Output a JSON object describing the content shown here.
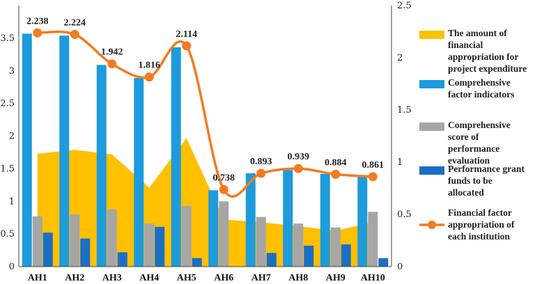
{
  "chart_data": {
    "type": "bar",
    "title": "",
    "categories": [
      "AH1",
      "AH2",
      "AH3",
      "AH4",
      "AH5",
      "AH6",
      "AH7",
      "AH8",
      "AH9",
      "AH10"
    ],
    "y_left": {
      "min": 0,
      "max": 4,
      "ticks": [
        "0",
        "0.5",
        "1",
        "1.5",
        "2",
        "2.5",
        "3",
        "3.5"
      ]
    },
    "y_right": {
      "min": 0,
      "max": 2.5,
      "ticks": [
        "0",
        "0.5",
        "1",
        "1.5",
        "2",
        "2.5"
      ]
    },
    "series": [
      {
        "name": "The amount of financial appropriation for project expenditure",
        "kind": "area",
        "axis": "left",
        "color": "#FFC000",
        "values": [
          1.73,
          1.79,
          1.72,
          1.21,
          1.97,
          0.72,
          0.68,
          0.62,
          0.55,
          0.68
        ]
      },
      {
        "name": "Comprehensive factor indicators",
        "kind": "bar",
        "axis": "left",
        "color": "#1E9BDB",
        "values": [
          3.57,
          3.54,
          3.09,
          2.89,
          3.36,
          1.17,
          1.43,
          1.48,
          1.42,
          1.38
        ]
      },
      {
        "name": "Comprehensive score of performance evaluation",
        "kind": "bar",
        "axis": "left",
        "color": "#A6A6A6",
        "values": [
          0.77,
          0.8,
          0.88,
          0.66,
          0.93,
          1.0,
          0.76,
          0.66,
          0.6,
          0.84
        ]
      },
      {
        "name": "Performance grant funds to be allocated",
        "kind": "bar",
        "axis": "left",
        "color": "#1A6FC5",
        "values": [
          0.52,
          0.43,
          0.22,
          0.61,
          0.13,
          0.0,
          0.21,
          0.32,
          0.34,
          0.13
        ]
      },
      {
        "name": "Financial factor appropriation of each institution",
        "kind": "line",
        "axis": "right",
        "color": "#F47B20",
        "values": [
          2.238,
          2.224,
          1.942,
          1.816,
          2.114,
          0.738,
          0.893,
          0.939,
          0.884,
          0.861
        ],
        "labels": [
          "2.238",
          "2.224",
          "1.942",
          "1.816",
          "2.114",
          "0.738",
          "0.893",
          "0.939",
          "0.884",
          "0.861"
        ]
      }
    ],
    "legend": {
      "position": "right",
      "entries": [
        {
          "lines": [
            "The amount of",
            "financial",
            "appropriation for",
            "project expenditure"
          ],
          "kind": "area",
          "color": "#FFC000"
        },
        {
          "lines": [
            "Comprehensive",
            "factor indicators"
          ],
          "kind": "bar",
          "color": "#1E9BDB"
        },
        {
          "lines": [
            "Comprehensive",
            "score of",
            "performance",
            "evaluation"
          ],
          "kind": "bar",
          "color": "#A6A6A6"
        },
        {
          "lines": [
            "Performance grant",
            "funds to be",
            "allocated"
          ],
          "kind": "bar",
          "color": "#1A6FC5"
        },
        {
          "lines": [
            "Financial factor",
            "appropriation of",
            "each institution"
          ],
          "kind": "line",
          "color": "#F47B20"
        }
      ]
    }
  }
}
